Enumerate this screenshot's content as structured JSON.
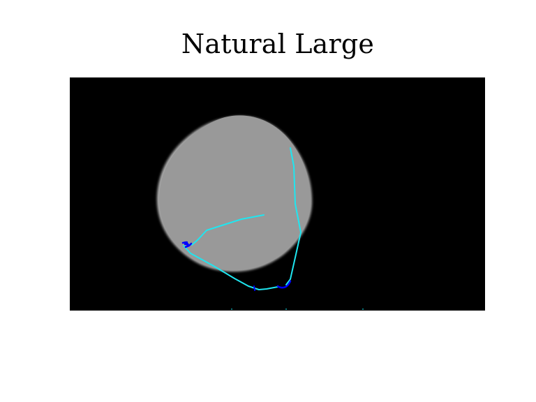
{
  "figure": {
    "title": "Natural Large"
  },
  "scene": {
    "background_color": "#000000",
    "disc_color": "#999999",
    "disc_edge_color": "#b3b3b3",
    "trajectory_color": "#1fe6f0",
    "highlight_color": "#0000ff",
    "point_marker_color": "#0000ff"
  }
}
